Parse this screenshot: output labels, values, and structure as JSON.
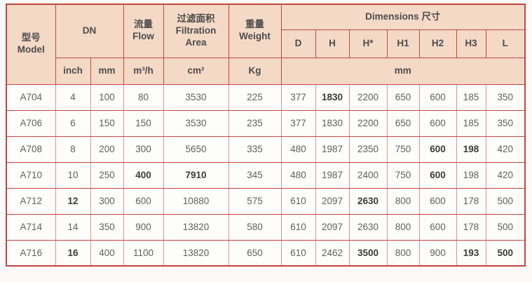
{
  "colors": {
    "page_bg": "#fbfaf8",
    "header_bg": "#f5d9c7",
    "border_dark": "#c4453e",
    "border_light": "#e5918a",
    "text": "#5f5f5f",
    "text_strong": "#3a3a3a",
    "cell_bg": "#fdfdfc"
  },
  "table": {
    "header": {
      "model_zh": "型号",
      "model_en": "Model",
      "dn": "DN",
      "flow_zh": "流量",
      "flow_en": "Flow",
      "filtration_zh": "过滤面积",
      "filtration_en": "Filtration Area",
      "weight_zh": "重量",
      "weight_en": "Weight",
      "dimensions": "Dimensions 尺寸",
      "dim_cols": [
        "D",
        "H",
        "H*",
        "H1",
        "H2",
        "H3",
        "L"
      ],
      "unit_inch": "inch",
      "unit_mm": "mm",
      "unit_flow": "m³/h",
      "unit_area": "cm²",
      "unit_weight": "Kg",
      "unit_dims": "mm"
    },
    "rows": [
      {
        "model": "A704",
        "values": [
          "4",
          "100",
          "80",
          "3530",
          "225",
          "377",
          "1830",
          "2200",
          "650",
          "600",
          "185",
          "350"
        ],
        "bold_indices": [
          6
        ]
      },
      {
        "model": "A706",
        "values": [
          "6",
          "150",
          "150",
          "3530",
          "235",
          "377",
          "1830",
          "2200",
          "650",
          "600",
          "185",
          "350"
        ],
        "bold_indices": []
      },
      {
        "model": "A708",
        "values": [
          "8",
          "200",
          "300",
          "5650",
          "335",
          "480",
          "1987",
          "2350",
          "750",
          "600",
          "198",
          "420"
        ],
        "bold_indices": [
          9,
          10
        ]
      },
      {
        "model": "A710",
        "values": [
          "10",
          "250",
          "400",
          "7910",
          "345",
          "480",
          "1987",
          "2400",
          "750",
          "600",
          "198",
          "420"
        ],
        "bold_indices": [
          2,
          3,
          9
        ]
      },
      {
        "model": "A712",
        "values": [
          "12",
          "300",
          "600",
          "10880",
          "575",
          "610",
          "2097",
          "2630",
          "800",
          "600",
          "178",
          "500"
        ],
        "bold_indices": [
          0,
          7
        ]
      },
      {
        "model": "A714",
        "values": [
          "14",
          "350",
          "900",
          "13820",
          "580",
          "610",
          "2097",
          "2630",
          "800",
          "600",
          "178",
          "500"
        ],
        "bold_indices": []
      },
      {
        "model": "A716",
        "values": [
          "16",
          "400",
          "1100",
          "13820",
          "650",
          "610",
          "2462",
          "3500",
          "800",
          "900",
          "193",
          "500"
        ],
        "bold_indices": [
          0,
          7,
          10,
          11
        ]
      }
    ]
  }
}
